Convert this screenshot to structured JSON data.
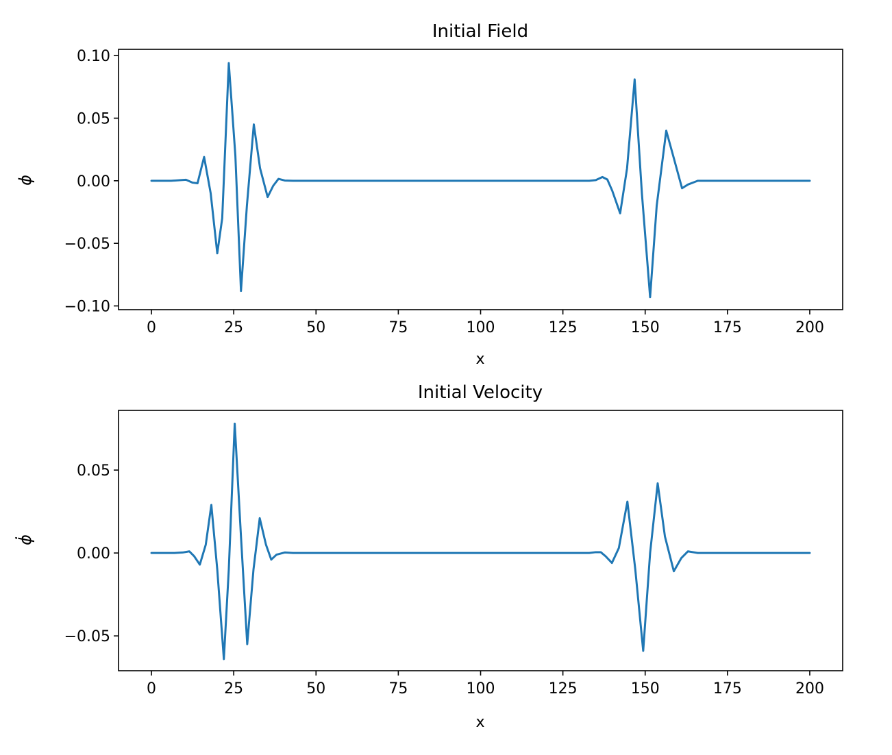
{
  "chart_data": [
    {
      "type": "line",
      "title": "Initial Field",
      "xlabel": "x",
      "ylabel": "ϕ",
      "xlim": [
        -10,
        210
      ],
      "ylim": [
        -0.103,
        0.105
      ],
      "xticks": [
        0,
        25,
        50,
        75,
        100,
        125,
        150,
        175,
        200
      ],
      "xtick_labels": [
        "0",
        "25",
        "50",
        "75",
        "100",
        "125",
        "150",
        "175",
        "200"
      ],
      "yticks": [
        -0.1,
        -0.05,
        0.0,
        0.05,
        0.1
      ],
      "ytick_labels": [
        "−0.10",
        "−0.05",
        "0.00",
        "0.05",
        "0.10"
      ],
      "grid": false,
      "series": [
        {
          "color": "#1f77b4",
          "x": [
            0,
            6,
            9,
            10.5,
            12.5,
            14,
            16,
            18,
            20,
            21.5,
            23.5,
            25.5,
            27.2,
            29,
            31.1,
            33,
            35.3,
            37,
            38.6,
            40.5,
            43,
            60,
            100,
            133,
            135,
            137,
            138.5,
            140,
            142.4,
            144.5,
            146.8,
            149,
            151.5,
            153.5,
            156.4,
            158.5,
            161.2,
            163,
            166,
            175,
            200
          ],
          "y": [
            0,
            0,
            0.0005,
            0.0008,
            -0.0015,
            -0.002,
            0.019,
            -0.01,
            -0.058,
            -0.03,
            0.094,
            0.02,
            -0.088,
            -0.02,
            0.045,
            0.01,
            -0.013,
            -0.004,
            0.0015,
            0.0002,
            0,
            0,
            0,
            0,
            0.0005,
            0.003,
            0.001,
            -0.008,
            -0.026,
            0.01,
            0.081,
            -0.01,
            -0.093,
            -0.02,
            0.04,
            0.02,
            -0.006,
            -0.003,
            0,
            0,
            0
          ]
        }
      ]
    },
    {
      "type": "line",
      "title": "Initial Velocity",
      "xlabel": "x",
      "ylabel": "ϕ̇",
      "xlim": [
        -10,
        210
      ],
      "ylim": [
        -0.071,
        0.086
      ],
      "xticks": [
        0,
        25,
        50,
        75,
        100,
        125,
        150,
        175,
        200
      ],
      "xtick_labels": [
        "0",
        "25",
        "50",
        "75",
        "100",
        "125",
        "150",
        "175",
        "200"
      ],
      "yticks": [
        -0.05,
        0.0,
        0.05
      ],
      "ytick_labels": [
        "−0.05",
        "0.00",
        "0.05"
      ],
      "grid": false,
      "series": [
        {
          "color": "#1f77b4",
          "x": [
            0,
            7,
            9.5,
            11.5,
            13,
            14.7,
            16.5,
            18.2,
            20,
            22,
            23.5,
            25.3,
            27.2,
            29.1,
            31,
            32.9,
            34.8,
            36.4,
            38,
            40.5,
            43,
            60,
            100,
            133,
            135,
            136.5,
            138,
            139.9,
            142,
            144.6,
            147,
            149.4,
            151.5,
            153.8,
            156,
            158.7,
            161,
            163,
            166,
            175,
            200
          ],
          "y": [
            0,
            0,
            0.0003,
            0.001,
            -0.002,
            -0.007,
            0.005,
            0.029,
            -0.01,
            -0.064,
            -0.01,
            0.078,
            0.01,
            -0.055,
            -0.01,
            0.021,
            0.005,
            -0.004,
            -0.001,
            0.0003,
            0,
            0,
            0,
            0,
            0.0005,
            0.0005,
            -0.002,
            -0.006,
            0.003,
            0.031,
            -0.01,
            -0.059,
            0.0,
            0.042,
            0.01,
            -0.011,
            -0.003,
            0.001,
            0,
            0,
            0
          ]
        }
      ]
    }
  ]
}
